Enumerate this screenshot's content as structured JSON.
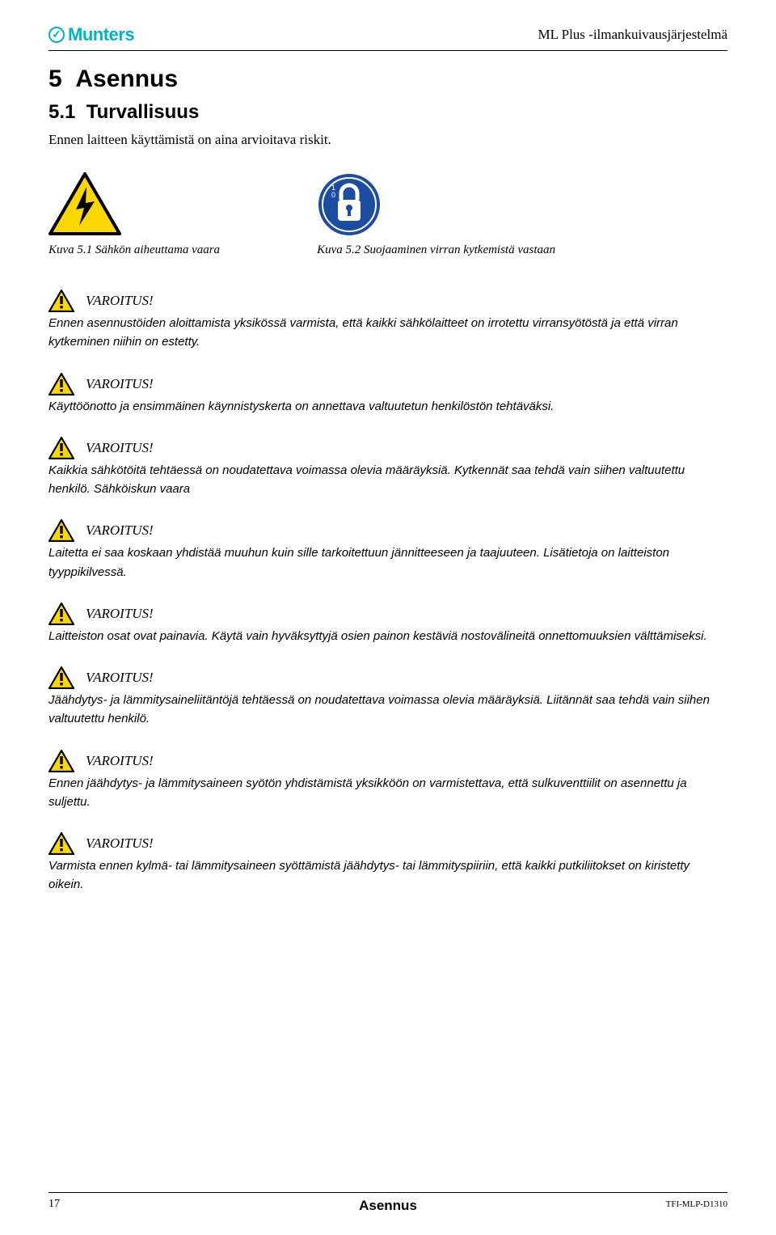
{
  "header": {
    "brand": "Munters",
    "doc_title": "ML Plus -ilmankuivausjärjestelmä"
  },
  "section": {
    "number": "5",
    "title": "Asennus",
    "sub_number": "5.1",
    "sub_title": "Turvallisuus",
    "intro": "Ennen laitteen käyttämistä on aina arvioitava riskit."
  },
  "figures": {
    "f1": {
      "caption": "Kuva 5.1 Sähkön aiheuttama vaara"
    },
    "f2": {
      "caption": "Kuva 5.2 Suojaaminen virran kytkemistä vastaan"
    }
  },
  "warning_label": "VAROITUS!",
  "warnings": [
    "Ennen asennustöiden aloittamista yksikössä varmista, että kaikki sähkölaitteet on irrotettu virransyötöstä ja että virran kytkeminen niihin on estetty.",
    "Käyttöönotto ja ensimmäinen käynnistyskerta on annettava valtuutetun henkilöstön tehtäväksi.",
    "Kaikkia sähkötöitä tehtäessä on noudatettava voimassa olevia määräyksiä. Kytkennät saa tehdä vain siihen valtuutettu henkilö. Sähköiskun vaara",
    "Laitetta ei saa koskaan yhdistää muuhun kuin sille tarkoitettuun jännitteeseen ja taajuuteen. Lisätietoja on laitteiston tyyppikilvessä.",
    "Laitteiston osat ovat painavia. Käytä vain hyväksyttyjä osien painon kestäviä nostovälineitä onnettomuuksien välttämiseksi.",
    "Jäähdytys- ja lämmitysaineliitäntöjä tehtäessä on noudatettava voimassa olevia määräyksiä. Liitännät saa tehdä vain siihen valtuutettu henkilö.",
    "Ennen jäähdytys- ja lämmitysaineen syötön yhdistämistä yksikköön on varmistettava, että sulkuventtiilit on asennettu ja suljettu.",
    "Varmista ennen kylmä- tai lämmitysaineen syöttämistä jäähdytys- tai lämmityspiiriin, että kaikki putkiliitokset on kiristetty oikein."
  ],
  "footer": {
    "page": "17",
    "center": "Asennus",
    "code": "TFI-MLP-D1310"
  },
  "colors": {
    "brand": "#00b4c8",
    "hazard_yellow": "#fbd700",
    "lock_blue": "#1c4da1"
  }
}
